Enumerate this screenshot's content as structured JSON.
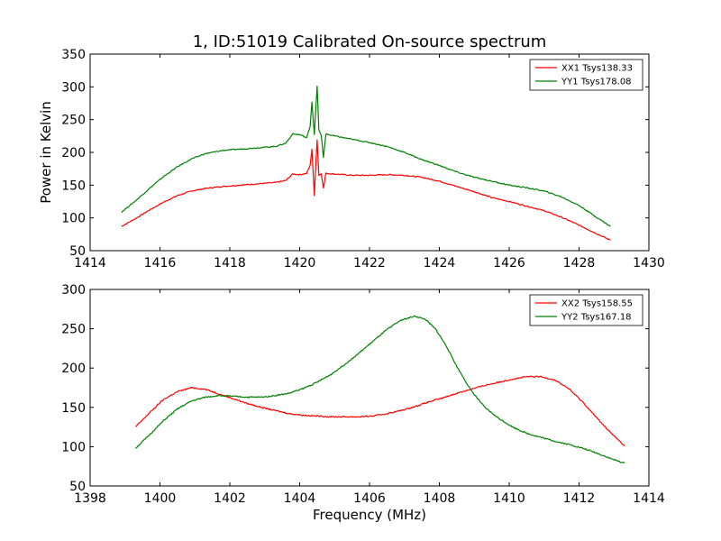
{
  "figure_title": "1, ID:51019 Calibrated On-source spectrum",
  "colors": {
    "xx": "#ff0000",
    "yy": "#008000",
    "axes": "#000000",
    "background": "#ffffff"
  },
  "chart_data": [
    {
      "type": "line",
      "title": "1, ID:51019 Calibrated On-source spectrum",
      "xlabel": "",
      "ylabel": "Power in Kelvin",
      "xlim": [
        1414,
        1430
      ],
      "ylim": [
        50,
        350
      ],
      "xticks": [
        1414,
        1416,
        1418,
        1420,
        1422,
        1424,
        1426,
        1428,
        1430
      ],
      "yticks": [
        50,
        100,
        150,
        200,
        250,
        300,
        350
      ],
      "grid": false,
      "legend_position": "top-right",
      "series": [
        {
          "name": "XX1 Tsys138.33",
          "color": "#ff0000",
          "x": [
            1414.9,
            1415.3,
            1415.7,
            1416.1,
            1416.5,
            1416.9,
            1417.3,
            1417.8,
            1418.3,
            1418.8,
            1419.3,
            1419.6,
            1419.8,
            1420.0,
            1420.2,
            1420.3,
            1420.35,
            1420.42,
            1420.45,
            1420.5,
            1420.55,
            1420.62,
            1420.68,
            1420.75,
            1421.0,
            1421.5,
            1422.0,
            1422.5,
            1423.0,
            1423.5,
            1424.0,
            1424.5,
            1425.0,
            1425.5,
            1426.0,
            1426.5,
            1427.0,
            1427.5,
            1428.0,
            1428.5,
            1428.9
          ],
          "values": [
            87,
            99,
            112,
            124,
            134,
            141,
            145,
            148,
            150,
            152,
            154,
            157,
            167,
            166,
            168,
            180,
            205,
            134,
            170,
            219,
            165,
            168,
            145,
            168,
            167,
            165,
            165,
            166,
            165,
            162,
            156,
            148,
            140,
            131,
            125,
            118,
            111,
            101,
            89,
            76,
            66
          ]
        },
        {
          "name": "YY1 Tsys178.08",
          "color": "#008000",
          "x": [
            1414.9,
            1415.3,
            1415.7,
            1416.1,
            1416.5,
            1416.9,
            1417.3,
            1417.8,
            1418.3,
            1418.8,
            1419.3,
            1419.6,
            1419.8,
            1420.0,
            1420.1,
            1420.2,
            1420.3,
            1420.35,
            1420.42,
            1420.5,
            1420.55,
            1420.62,
            1420.68,
            1420.75,
            1421.0,
            1421.5,
            1422.0,
            1422.5,
            1423.0,
            1423.5,
            1424.0,
            1424.5,
            1425.0,
            1425.5,
            1426.0,
            1426.5,
            1427.0,
            1427.5,
            1428.0,
            1428.5,
            1428.9
          ],
          "values": [
            109,
            126,
            145,
            163,
            178,
            190,
            198,
            203,
            205,
            207,
            209,
            214,
            228,
            227,
            225,
            222,
            240,
            277,
            228,
            301,
            235,
            225,
            192,
            228,
            225,
            220,
            215,
            209,
            200,
            189,
            180,
            170,
            162,
            156,
            150,
            146,
            141,
            132,
            119,
            101,
            87
          ]
        }
      ]
    },
    {
      "type": "line",
      "title": "",
      "xlabel": "Frequency (MHz)",
      "ylabel": "",
      "xlim": [
        1398,
        1414
      ],
      "ylim": [
        50,
        300
      ],
      "xticks": [
        1398,
        1400,
        1402,
        1404,
        1406,
        1408,
        1410,
        1412,
        1414
      ],
      "yticks": [
        50,
        100,
        150,
        200,
        250,
        300
      ],
      "grid": false,
      "legend_position": "top-right",
      "series": [
        {
          "name": "XX2 Tsys158.55",
          "color": "#ff0000",
          "x": [
            1399.3,
            1399.7,
            1400.1,
            1400.5,
            1400.9,
            1401.3,
            1401.7,
            1402.1,
            1402.5,
            1402.9,
            1403.3,
            1403.7,
            1404.1,
            1404.5,
            1404.9,
            1405.3,
            1405.7,
            1406.1,
            1406.5,
            1406.9,
            1407.3,
            1407.7,
            1408.1,
            1408.5,
            1408.9,
            1409.3,
            1409.7,
            1410.1,
            1410.5,
            1410.9,
            1411.3,
            1411.7,
            1412.1,
            1412.5,
            1412.9,
            1413.3
          ],
          "values": [
            125,
            143,
            160,
            170,
            175,
            173,
            167,
            161,
            155,
            150,
            146,
            142,
            140,
            139,
            138,
            138,
            138,
            139,
            142,
            146,
            151,
            157,
            162,
            168,
            173,
            178,
            182,
            186,
            189,
            189,
            185,
            174,
            157,
            137,
            118,
            101
          ]
        },
        {
          "name": "YY2 Tsys167.18",
          "color": "#008000",
          "x": [
            1399.3,
            1399.7,
            1400.1,
            1400.5,
            1400.9,
            1401.3,
            1401.7,
            1402.1,
            1402.5,
            1402.9,
            1403.3,
            1403.7,
            1404.1,
            1404.5,
            1404.9,
            1405.3,
            1405.7,
            1406.1,
            1406.5,
            1406.9,
            1407.3,
            1407.6,
            1407.9,
            1408.2,
            1408.5,
            1408.9,
            1409.3,
            1409.7,
            1410.1,
            1410.5,
            1410.9,
            1411.3,
            1411.7,
            1412.1,
            1412.5,
            1412.9,
            1413.3
          ],
          "values": [
            98,
            115,
            133,
            148,
            158,
            163,
            165,
            164,
            163,
            163,
            165,
            168,
            174,
            182,
            192,
            205,
            219,
            234,
            249,
            261,
            266,
            262,
            249,
            228,
            202,
            172,
            150,
            136,
            125,
            117,
            112,
            107,
            103,
            98,
            92,
            85,
            79
          ]
        }
      ]
    }
  ]
}
